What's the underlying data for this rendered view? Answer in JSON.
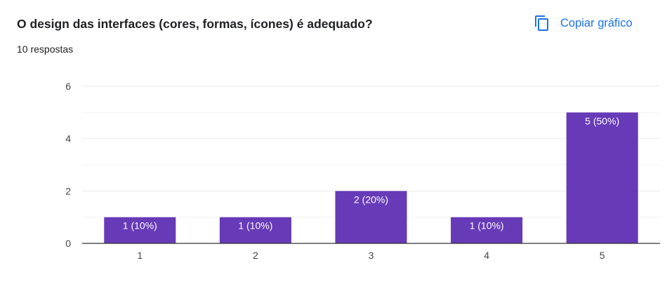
{
  "question": {
    "title": "O design das interfaces (cores, formas, ícones) é adequado?",
    "responses": "10 respostas"
  },
  "actions": {
    "copy_label": "Copiar gráfico",
    "copy_icon": "copy-icon"
  },
  "colors": {
    "bar": "#673ab7",
    "accent": "#1a73e8",
    "grid": "#ebebeb",
    "axis": "#333333"
  },
  "chart_data": {
    "type": "bar",
    "categories": [
      "1",
      "2",
      "3",
      "4",
      "5"
    ],
    "values": [
      1,
      1,
      2,
      1,
      5
    ],
    "data_labels": [
      "1 (10%)",
      "1 (10%)",
      "2 (20%)",
      "1 (10%)",
      "5 (50%)"
    ],
    "ylim": [
      0,
      6
    ],
    "yticks": [
      0,
      2,
      4,
      6
    ],
    "grid": true,
    "title": "",
    "xlabel": "",
    "ylabel": ""
  }
}
